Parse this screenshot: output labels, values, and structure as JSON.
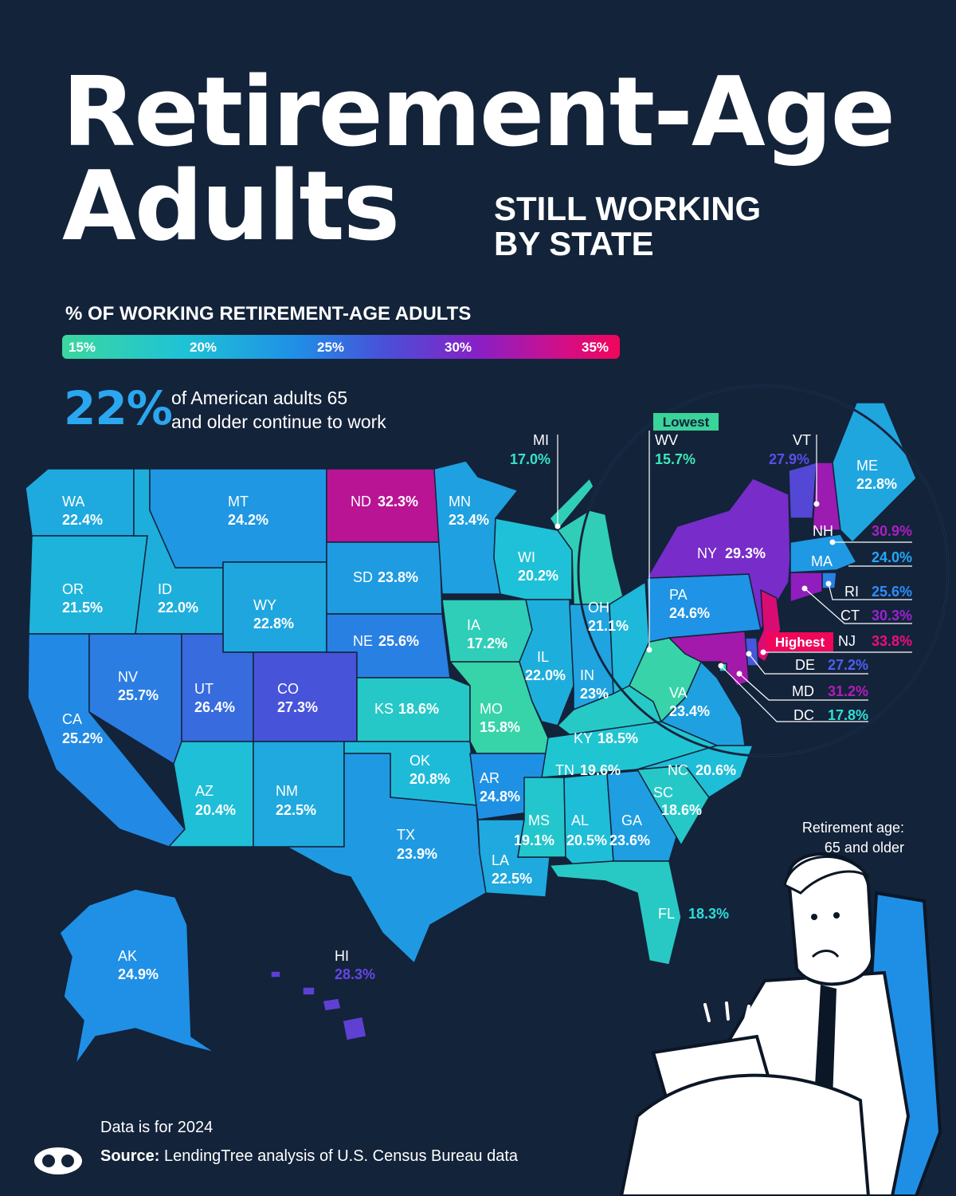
{
  "title": {
    "line1": "Retirement-Age",
    "line2": "Adults",
    "sub1": "STILL WORKING",
    "sub2": "BY STATE"
  },
  "legend": {
    "title": "% OF WORKING RETIREMENT-AGE ADULTS",
    "ticks": [
      "15%",
      "20%",
      "25%",
      "30%",
      "35%"
    ],
    "colors": [
      "#3cd6a0",
      "#1ec3d6",
      "#1f8fe6",
      "#8a1fc4",
      "#f0065a"
    ]
  },
  "stat": {
    "value": "22%",
    "line1": "of American adults 65",
    "line2": "and older continue to work"
  },
  "callouts": {
    "lowest": "Lowest",
    "highest": "Highest"
  },
  "note": {
    "line1": "Retirement age:",
    "line2": "65 and older"
  },
  "footer": {
    "data_year": "Data is for 2024",
    "source_label": "Source:",
    "source_text": "LendingTree analysis of U.S. Census Bureau data"
  },
  "states": {
    "WA": {
      "abbr": "WA",
      "value": "22.4%"
    },
    "OR": {
      "abbr": "OR",
      "value": "21.5%"
    },
    "CA": {
      "abbr": "CA",
      "value": "25.2%"
    },
    "ID": {
      "abbr": "ID",
      "value": "22.0%"
    },
    "NV": {
      "abbr": "NV",
      "value": "25.7%"
    },
    "MT": {
      "abbr": "MT",
      "value": "24.2%"
    },
    "WY": {
      "abbr": "WY",
      "value": "22.8%"
    },
    "UT": {
      "abbr": "UT",
      "value": "26.4%"
    },
    "CO": {
      "abbr": "CO",
      "value": "27.3%"
    },
    "AZ": {
      "abbr": "AZ",
      "value": "20.4%"
    },
    "NM": {
      "abbr": "NM",
      "value": "22.5%"
    },
    "ND": {
      "abbr": "ND",
      "value": "32.3%"
    },
    "SD": {
      "abbr": "SD",
      "value": "23.8%"
    },
    "NE": {
      "abbr": "NE",
      "value": "25.6%"
    },
    "KS": {
      "abbr": "KS",
      "value": "18.6%"
    },
    "OK": {
      "abbr": "OK",
      "value": "20.8%"
    },
    "TX": {
      "abbr": "TX",
      "value": "23.9%"
    },
    "MN": {
      "abbr": "MN",
      "value": "23.4%"
    },
    "IA": {
      "abbr": "IA",
      "value": "17.2%"
    },
    "MO": {
      "abbr": "MO",
      "value": "15.8%"
    },
    "AR": {
      "abbr": "AR",
      "value": "24.8%"
    },
    "LA": {
      "abbr": "LA",
      "value": "22.5%"
    },
    "WI": {
      "abbr": "WI",
      "value": "20.2%"
    },
    "IL": {
      "abbr": "IL",
      "value": "22.0%"
    },
    "MI": {
      "abbr": "MI",
      "value": "17.0%"
    },
    "IN": {
      "abbr": "IN",
      "value": "23%"
    },
    "OH": {
      "abbr": "OH",
      "value": "21.1%"
    },
    "KY": {
      "abbr": "KY",
      "value": "18.5%"
    },
    "TN": {
      "abbr": "TN",
      "value": "19.6%"
    },
    "MS": {
      "abbr": "MS",
      "value": "19.1%"
    },
    "AL": {
      "abbr": "AL",
      "value": "20.5%"
    },
    "GA": {
      "abbr": "GA",
      "value": "23.6%"
    },
    "FL": {
      "abbr": "FL",
      "value": "18.3%"
    },
    "SC": {
      "abbr": "SC",
      "value": "18.6%"
    },
    "NC": {
      "abbr": "NC",
      "value": "20.6%"
    },
    "VA": {
      "abbr": "VA",
      "value": "23.4%"
    },
    "WV": {
      "abbr": "WV",
      "value": "15.7%"
    },
    "PA": {
      "abbr": "PA",
      "value": "24.6%"
    },
    "NY": {
      "abbr": "NY",
      "value": "29.3%"
    },
    "VT": {
      "abbr": "VT",
      "value": "27.9%"
    },
    "NH": {
      "abbr": "NH",
      "value": "30.9%"
    },
    "ME": {
      "abbr": "ME",
      "value": "22.8%"
    },
    "MA": {
      "abbr": "MA",
      "value": "24.0%"
    },
    "RI": {
      "abbr": "RI",
      "value": "25.6%"
    },
    "CT": {
      "abbr": "CT",
      "value": "30.3%"
    },
    "NJ": {
      "abbr": "NJ",
      "value": "33.8%"
    },
    "DE": {
      "abbr": "DE",
      "value": "27.2%"
    },
    "MD": {
      "abbr": "MD",
      "value": "31.2%"
    },
    "DC": {
      "abbr": "DC",
      "value": "17.8%"
    },
    "AK": {
      "abbr": "AK",
      "value": "24.9%"
    },
    "HI": {
      "abbr": "HI",
      "value": "28.3%"
    }
  }
}
